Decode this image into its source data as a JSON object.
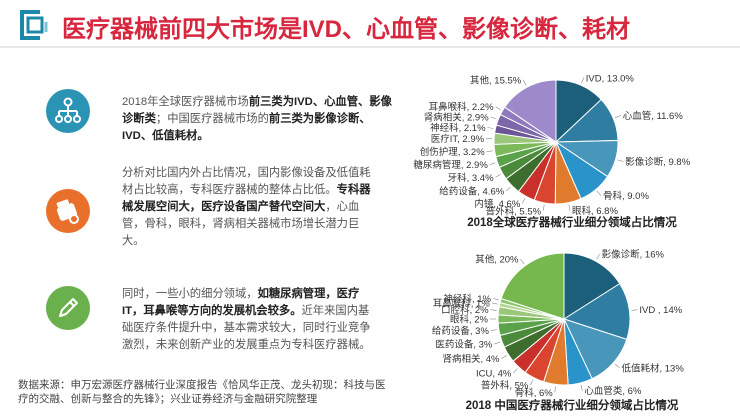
{
  "title": "医疗器械前四大市场是IVD、心血管、影像诊断、耗材",
  "paragraphs": [
    {
      "segments": [
        {
          "t": "2018年全球医疗器械市场",
          "b": false
        },
        {
          "t": "前三类为IVD、心血管、影像诊断类",
          "b": true
        },
        {
          "t": "；中国医疗器械市场的",
          "b": false
        },
        {
          "t": "前三类为影像诊断、IVD、低值耗材。",
          "b": true
        }
      ]
    },
    {
      "segments": [
        {
          "t": "分析对比国内外占比情况，国内影像设备及低值耗材占比较高，专科医疗器械的整体占比低。",
          "b": false
        },
        {
          "t": "专科器械发展空间大，医疗设备国产替代空间大",
          "b": true
        },
        {
          "t": "，心血管，骨科，眼科，肾病相关器械市场增长潜力巨大。",
          "b": false
        }
      ]
    },
    {
      "segments": [
        {
          "t": "同时，一些小的细分领域，",
          "b": false
        },
        {
          "t": "如糖尿病管理，医疗IT，耳鼻喉等方向的发展机会较多。",
          "b": true
        },
        {
          "t": "近年来国内基础医疗条件提升中，基本需求较大，同时行业竞争激烈，未来创新产业的发展重点为专科医疗器械。",
          "b": false
        }
      ]
    }
  ],
  "source": "数据来源：申万宏源医疗器械行业深度报告《恰风华正茂、龙头初现：科技与医疗的交融、创新与整合的先锋》；兴业证券经济与金融研究院整理",
  "icons": [
    {
      "name": "network-icon",
      "color": "#2b93b4"
    },
    {
      "name": "pill-bottle-icon",
      "color": "#e8702a"
    },
    {
      "name": "pencil-icon",
      "color": "#6ab04c"
    }
  ],
  "chart_data": [
    {
      "type": "pie",
      "title": "2018全球医疗器械行业细分领域占比情况",
      "slices": [
        {
          "label": "IVD, 13.0%",
          "value": 13.0,
          "color": "#1b5f7a"
        },
        {
          "label": "心血管, 11.6%",
          "value": 11.6,
          "color": "#2f7ea1"
        },
        {
          "label": "影像诊断, 9.8%",
          "value": 9.8,
          "color": "#4996bb"
        },
        {
          "label": "骨科, 9.0%",
          "value": 9.0,
          "color": "#2a93c9"
        },
        {
          "label": "眼科, 6.8%",
          "value": 6.8,
          "color": "#e07b2d"
        },
        {
          "label": "普外科, 5.5%",
          "value": 5.5,
          "color": "#d9452f"
        },
        {
          "label": "内镜, 4.6%",
          "value": 4.6,
          "color": "#c9302c"
        },
        {
          "label": "给药设备, 4.6%",
          "value": 4.6,
          "color": "#3e6e2e"
        },
        {
          "label": "牙科, 3.4%",
          "value": 3.4,
          "color": "#4a8a3a"
        },
        {
          "label": "糖尿病管理, 2.9%",
          "value": 2.9,
          "color": "#5aa34a"
        },
        {
          "label": "创伤护理, 3.2%",
          "value": 3.2,
          "color": "#7cb95a"
        },
        {
          "label": "医疗IT, 2.9%",
          "value": 2.9,
          "color": "#9bc77a"
        },
        {
          "label": "神经科, 2.1%",
          "value": 2.1,
          "color": "#6a5596"
        },
        {
          "label": "肾病相关, 2.9%",
          "value": 2.9,
          "color": "#7d67ab"
        },
        {
          "label": "耳鼻喉科, 2.2%",
          "value": 2.2,
          "color": "#8f79bf"
        },
        {
          "label": "其他, 15.5%",
          "value": 15.5,
          "color": "#9c8acb"
        }
      ]
    },
    {
      "type": "pie",
      "title": "2018 中国医疗器械行业细分领域占比情况",
      "slices": [
        {
          "label": "影像诊断, 16%",
          "value": 16,
          "color": "#1b5f7a"
        },
        {
          "label": "IVD , 14%",
          "value": 14,
          "color": "#2f7ea1"
        },
        {
          "label": "低值耗材, 13%",
          "value": 13,
          "color": "#4996bb"
        },
        {
          "label": "心血管类, 6%",
          "value": 6,
          "color": "#2a93c9"
        },
        {
          "label": "骨科, 6%",
          "value": 6,
          "color": "#e07b2d"
        },
        {
          "label": "普外科, 5%",
          "value": 5,
          "color": "#d9452f"
        },
        {
          "label": "ICU, 4%",
          "value": 4,
          "color": "#c9302c"
        },
        {
          "label": "肾病相关, 4%",
          "value": 4,
          "color": "#3e6e2e"
        },
        {
          "label": "医药设备, 3%",
          "value": 3,
          "color": "#4a8a3a"
        },
        {
          "label": "给药设备, 3%",
          "value": 3,
          "color": "#5aa34a"
        },
        {
          "label": "眼科, 2%",
          "value": 2,
          "color": "#7cb95a"
        },
        {
          "label": "口腔科, 2%",
          "value": 2,
          "color": "#9bc77a"
        },
        {
          "label": "耳鼻喉科, 1%",
          "value": 1,
          "color": "#b3d493"
        },
        {
          "label": "神经科, 1%",
          "value": 1,
          "color": "#8ac56a"
        },
        {
          "label": "其他, 20%",
          "value": 20,
          "color": "#76b84e"
        }
      ]
    }
  ]
}
